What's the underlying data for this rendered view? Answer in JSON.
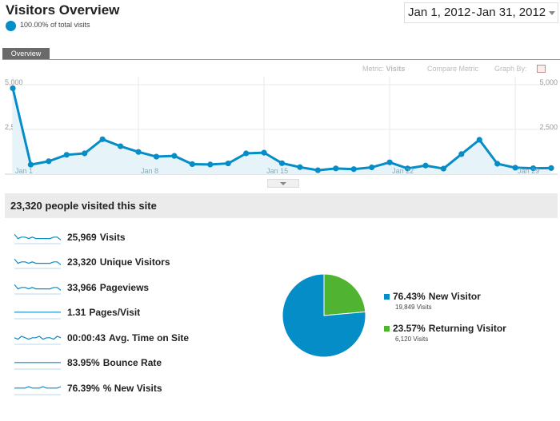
{
  "header": {
    "title": "Visitors Overview",
    "percent_text": "100.00% of total visits",
    "date_start": "Jan 1, 2012",
    "date_sep": "-",
    "date_end": "Jan 31, 2012"
  },
  "tabs": [
    {
      "label": "Overview"
    }
  ],
  "chart_controls": {
    "metric_label": "Metric:",
    "metric_value": "Visits",
    "compare_metric": "Compare Metric",
    "graph_by": "Graph By:"
  },
  "chart_data": {
    "type": "area",
    "ylim": [
      0,
      5000
    ],
    "y_ticks": [
      "5,000",
      "2,500"
    ],
    "x_tick_labels": [
      "Jan 1",
      "Jan 8",
      "Jan 15",
      "Jan 22",
      "Jan 29"
    ],
    "series": [
      {
        "values": [
          4800,
          530,
          720,
          1080,
          1160,
          1950,
          1560,
          1240,
          980,
          1020,
          560,
          540,
          600,
          1160,
          1200,
          610,
          390,
          220,
          320,
          280,
          380,
          660,
          320,
          480,
          310,
          1120,
          1920,
          580,
          360,
          330,
          340
        ]
      }
    ],
    "colors": {
      "line": "#058dc7",
      "fill": "#e6f4fa"
    },
    "grid": true
  },
  "summary": {
    "heading": "23,320 people visited this site",
    "metrics": [
      {
        "value": "25,969",
        "label": "Visits",
        "spark": [
          6,
          3,
          4,
          4,
          3,
          4,
          3,
          3,
          3,
          3,
          3,
          4,
          4,
          2
        ]
      },
      {
        "value": "23,320",
        "label": "Unique Visitors",
        "spark": [
          6,
          3,
          4,
          4,
          3,
          4,
          3,
          3,
          3,
          3,
          3,
          4,
          4,
          2
        ]
      },
      {
        "value": "33,966",
        "label": "Pageviews",
        "spark": [
          6,
          3,
          4,
          4,
          3,
          4,
          3,
          3,
          3,
          3,
          3,
          4,
          4,
          2
        ]
      },
      {
        "value": "1.31",
        "label": "Pages/Visit",
        "spark": [
          4,
          4,
          4,
          4,
          4,
          4,
          4,
          4,
          4,
          4,
          4,
          4,
          4,
          4
        ]
      },
      {
        "value": "00:00:43",
        "label": "Avg. Time on Site",
        "spark": [
          4,
          3,
          5,
          4,
          3,
          4,
          4,
          5,
          3,
          4,
          4,
          3,
          5,
          4
        ]
      },
      {
        "value": "83.95%",
        "label": "Bounce Rate",
        "spark": [
          4,
          4,
          4,
          4,
          4,
          4,
          4,
          4,
          4,
          4,
          4,
          4,
          4,
          4
        ]
      },
      {
        "value": "76.39%",
        "label": "% New Visits",
        "spark": [
          4,
          4,
          4,
          4,
          5,
          4,
          4,
          4,
          5,
          4,
          4,
          4,
          4,
          5
        ]
      }
    ]
  },
  "pie": {
    "slices": [
      {
        "label": "New Visitor",
        "percent_text": "76.43%",
        "percent": 76.43,
        "visits_text": "19,849 Visits",
        "color": "#058dc7"
      },
      {
        "label": "Returning Visitor",
        "percent_text": "23.57%",
        "percent": 23.57,
        "visits_text": "6,120 Visits",
        "color": "#50b432"
      }
    ]
  }
}
